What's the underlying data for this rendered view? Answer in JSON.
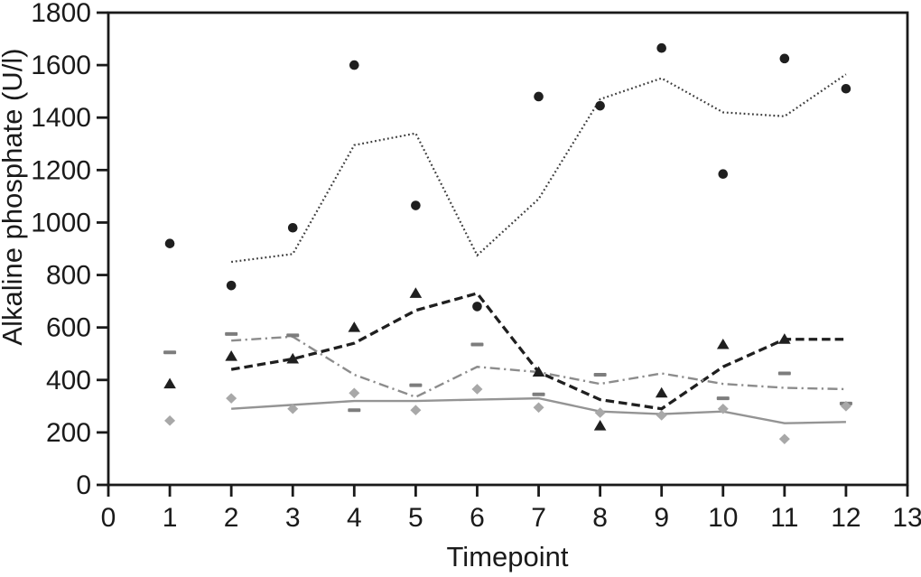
{
  "figure": {
    "background": "#ffffff",
    "axis_color": "#1a1a1a",
    "text_color": "#1a1a1a"
  },
  "chart_data": {
    "type": "line",
    "title": "",
    "xlabel": "Timepoint",
    "ylabel": "Alkaline phosphate (U/l)",
    "xlim": [
      0,
      13
    ],
    "ylim": [
      0,
      1800
    ],
    "x_ticks": [
      0,
      1,
      2,
      3,
      4,
      5,
      6,
      7,
      8,
      9,
      10,
      11,
      12,
      13
    ],
    "y_ticks": [
      0,
      200,
      400,
      600,
      800,
      1000,
      1200,
      1400,
      1600,
      1800
    ],
    "grid": false,
    "legend": "none",
    "x": [
      1,
      2,
      3,
      4,
      5,
      6,
      7,
      8,
      9,
      10,
      11,
      12
    ],
    "marker_series": [
      {
        "name": "filled-circles",
        "marker": "circle",
        "color": "#1f1f1f",
        "values": [
          920,
          760,
          980,
          1600,
          1065,
          680,
          1480,
          1445,
          1665,
          1185,
          1625,
          1510
        ]
      },
      {
        "name": "filled-triangles",
        "marker": "triangle",
        "color": "#1f1f1f",
        "values": [
          385,
          490,
          480,
          600,
          730,
          null,
          430,
          225,
          350,
          535,
          555,
          null
        ]
      },
      {
        "name": "gray-dashes",
        "marker": "dash",
        "color": "#7d7d7d",
        "values": [
          505,
          575,
          570,
          285,
          380,
          535,
          345,
          420,
          null,
          330,
          425,
          310
        ]
      },
      {
        "name": "gray-diamonds",
        "marker": "diamond",
        "color": "#a8a8a8",
        "values": [
          245,
          330,
          290,
          350,
          285,
          365,
          295,
          275,
          265,
          290,
          175,
          300
        ]
      }
    ],
    "line_series": [
      {
        "name": "dotted-line",
        "style": "dotted",
        "color": "#3c3c3c",
        "values": [
          null,
          850,
          880,
          1295,
          1340,
          875,
          1090,
          1470,
          1550,
          1420,
          1405,
          1565
        ]
      },
      {
        "name": "dashed-line",
        "style": "dashed",
        "color": "#1f1f1f",
        "values": [
          null,
          440,
          480,
          540,
          665,
          730,
          430,
          325,
          290,
          450,
          555,
          555
        ]
      },
      {
        "name": "dash-dot-line",
        "style": "dashdot",
        "color": "#8c8c8c",
        "values": [
          null,
          550,
          565,
          420,
          335,
          450,
          430,
          385,
          425,
          385,
          370,
          365
        ]
      },
      {
        "name": "solid-line",
        "style": "solid",
        "color": "#949494",
        "values": [
          null,
          290,
          305,
          320,
          320,
          325,
          330,
          280,
          270,
          280,
          235,
          240
        ]
      }
    ]
  }
}
